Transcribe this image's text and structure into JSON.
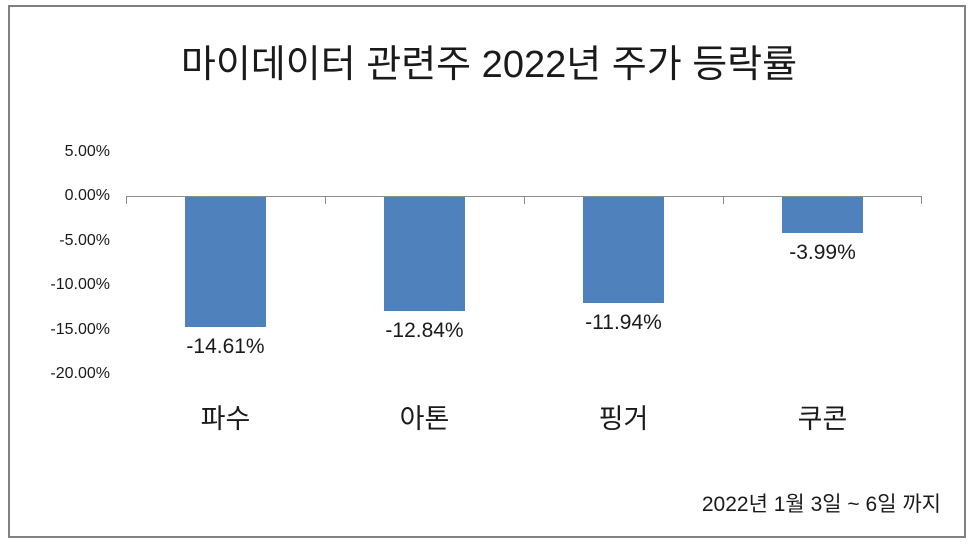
{
  "chart_data": {
    "type": "bar",
    "title": "마이데이터 관련주 2022년 주가 등락률",
    "categories": [
      "파수",
      "아톤",
      "핑거",
      "쿠콘"
    ],
    "values": [
      -14.61,
      -12.84,
      -11.94,
      -3.99
    ],
    "data_labels": [
      "-14.61%",
      "-12.84%",
      "-11.94%",
      "-3.99%"
    ],
    "series_name": "주가 등락률",
    "y_axis": {
      "ticks": [
        {
          "label": "5.00%",
          "value": 5
        },
        {
          "label": "0.00%",
          "value": 0
        },
        {
          "label": "-5.00%",
          "value": -5
        },
        {
          "label": "-10.00%",
          "value": -10
        },
        {
          "label": "-15.00%",
          "value": -15
        },
        {
          "label": "-20.00%",
          "value": -20
        }
      ],
      "ylim": [
        -20,
        5
      ]
    },
    "xlabel": "",
    "ylabel": "",
    "grid": false,
    "legend": false,
    "footnote": "2022년 1월 3일 ~ 6일 까지"
  },
  "colors": {
    "bar": "#4F81BD",
    "axis": "#8C8C8C",
    "border": "#808080",
    "text": "#1A1A1A",
    "background": "#FFFFFF"
  }
}
